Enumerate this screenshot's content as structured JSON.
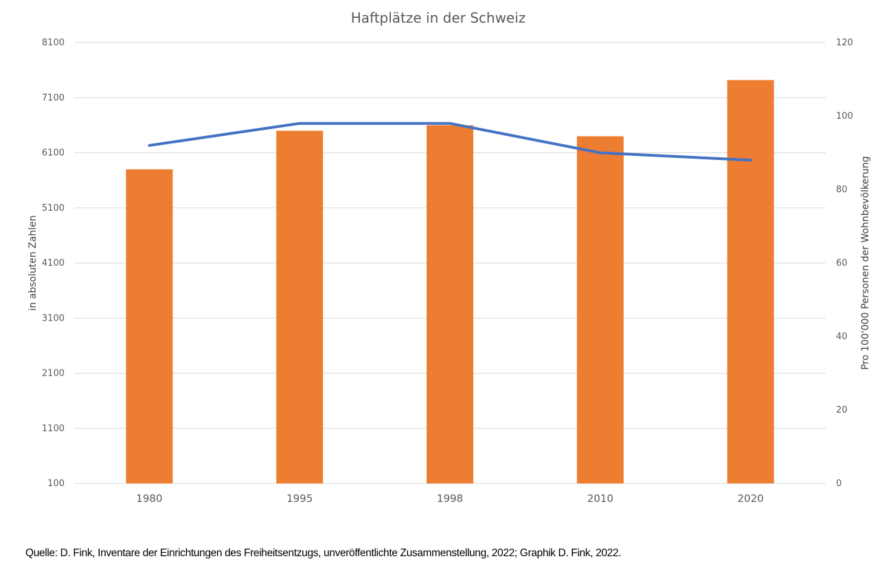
{
  "chart_data": {
    "type": "bar",
    "title": "Haftplätze in der Schweiz",
    "categories": [
      "1980",
      "1995",
      "1998",
      "2010",
      "2020"
    ],
    "series": [
      {
        "type": "bar",
        "axis": "left",
        "values": [
          5800,
          6500,
          6600,
          6400,
          7420
        ],
        "color": "#ED7D31"
      },
      {
        "type": "line",
        "axis": "right",
        "values": [
          92,
          98,
          98,
          90,
          88
        ],
        "color": "#4472C4"
      }
    ],
    "ylabel": "in absoluten Zahlen",
    "ylabel_right": "Pro 100'000 Personen der Wohnbevölkerung",
    "ylim": [
      100,
      8100
    ],
    "ylim_right": [
      0,
      120
    ],
    "yticks": [
      "100",
      "1100",
      "2100",
      "3100",
      "4100",
      "5100",
      "6100",
      "7100",
      "8100"
    ],
    "yticks_right": [
      "0",
      "20",
      "40",
      "60",
      "80",
      "100",
      "120"
    ],
    "grid": true
  },
  "source_note": "Quelle: D. Fink, Inventare der Einrichtungen des Freiheitsentzugs, unveröffentlichte Zusammenstellung, 2022; Graphik D. Fink, 2022."
}
